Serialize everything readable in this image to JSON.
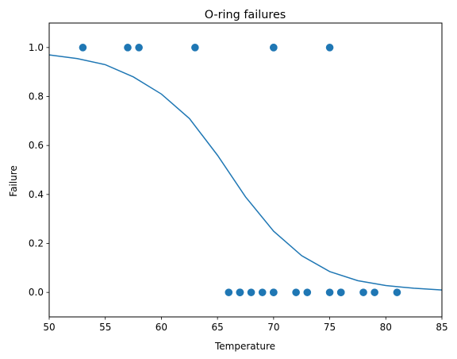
{
  "chart_data": {
    "type": "scatter",
    "title": "O-ring failures",
    "xlabel": "Temperature",
    "ylabel": "Failure",
    "xlim": [
      50,
      85
    ],
    "ylim": [
      -0.1,
      1.1
    ],
    "xticks": [
      50,
      55,
      60,
      65,
      70,
      75,
      80,
      85
    ],
    "yticks": [
      0.0,
      0.2,
      0.4,
      0.6,
      0.8,
      1.0
    ],
    "xtick_labels": [
      "50",
      "55",
      "60",
      "65",
      "70",
      "75",
      "80",
      "85"
    ],
    "ytick_labels": [
      "0.0",
      "0.2",
      "0.4",
      "0.6",
      "0.8",
      "1.0"
    ],
    "grid": false,
    "colors": {
      "series": "#1f77b4",
      "axes": "#000000",
      "background": "#ffffff"
    },
    "series": [
      {
        "type": "scatter",
        "points": [
          {
            "x": 53,
            "y": 1
          },
          {
            "x": 57,
            "y": 1
          },
          {
            "x": 58,
            "y": 1
          },
          {
            "x": 63,
            "y": 1
          },
          {
            "x": 70,
            "y": 1
          },
          {
            "x": 70,
            "y": 1
          },
          {
            "x": 75,
            "y": 1
          },
          {
            "x": 66,
            "y": 0
          },
          {
            "x": 67,
            "y": 0
          },
          {
            "x": 67,
            "y": 0
          },
          {
            "x": 67,
            "y": 0
          },
          {
            "x": 68,
            "y": 0
          },
          {
            "x": 69,
            "y": 0
          },
          {
            "x": 70,
            "y": 0
          },
          {
            "x": 70,
            "y": 0
          },
          {
            "x": 72,
            "y": 0
          },
          {
            "x": 73,
            "y": 0
          },
          {
            "x": 75,
            "y": 0
          },
          {
            "x": 76,
            "y": 0
          },
          {
            "x": 76,
            "y": 0
          },
          {
            "x": 78,
            "y": 0
          },
          {
            "x": 79,
            "y": 0
          },
          {
            "x": 81,
            "y": 0
          }
        ]
      },
      {
        "type": "line",
        "x": [
          50,
          52.5,
          55,
          57.5,
          60,
          62.5,
          65,
          67.5,
          70,
          72.5,
          75,
          77.5,
          80,
          82.5,
          85
        ],
        "y": [
          0.97,
          0.955,
          0.93,
          0.88,
          0.81,
          0.71,
          0.56,
          0.39,
          0.25,
          0.15,
          0.085,
          0.048,
          0.028,
          0.017,
          0.01
        ]
      }
    ]
  }
}
